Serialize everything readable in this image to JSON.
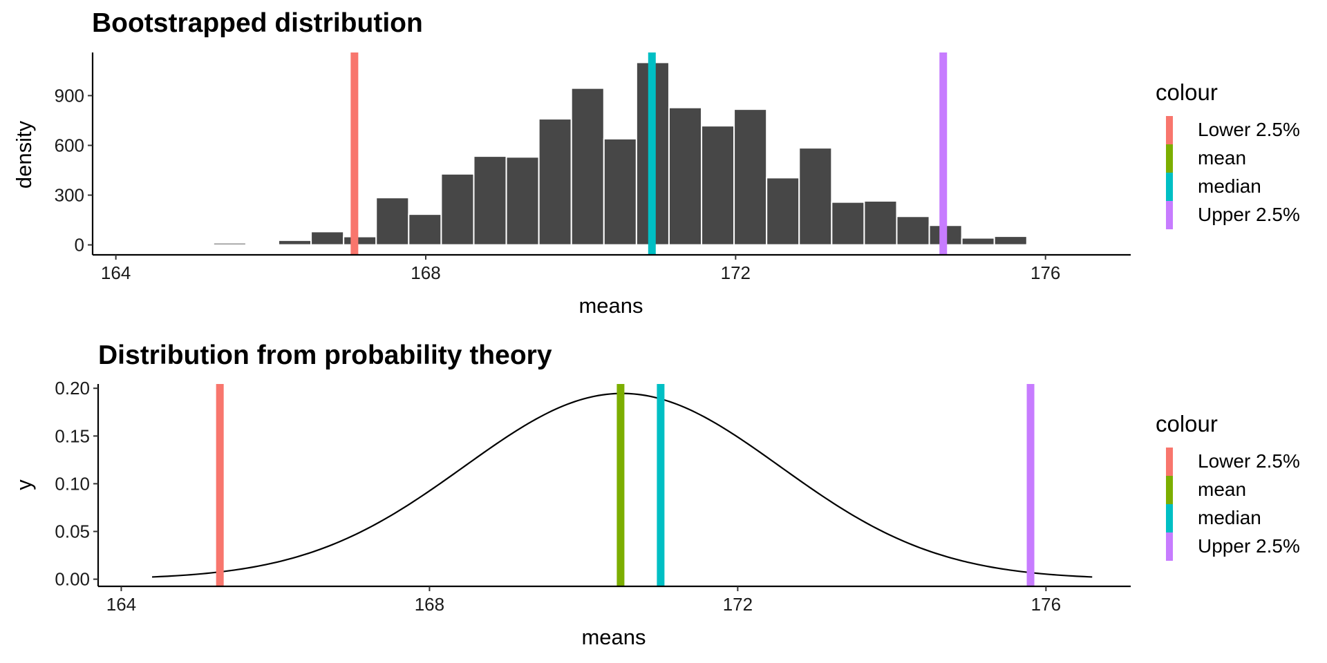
{
  "chart_data": [
    {
      "type": "bar",
      "title": "Bootstrapped distribution",
      "xlabel": "means",
      "ylabel": "density",
      "xlim": [
        163.7,
        177.1
      ],
      "ylim": [
        -60,
        1160
      ],
      "x_ticks": [
        164,
        168,
        172,
        176
      ],
      "y_ticks": [
        0,
        300,
        600,
        900
      ],
      "grid": false,
      "legend_position": "right",
      "legend_title": "colour",
      "bins": [
        {
          "x0": 164.42,
          "x1": 164.84,
          "value": 3
        },
        {
          "x0": 164.84,
          "x1": 165.26,
          "value": 3
        },
        {
          "x0": 165.26,
          "x1": 165.68,
          "value": 12
        },
        {
          "x0": 165.68,
          "x1": 166.1,
          "value": 5
        },
        {
          "x0": 166.1,
          "x1": 166.52,
          "value": 28
        },
        {
          "x0": 166.52,
          "x1": 166.94,
          "value": 80
        },
        {
          "x0": 166.94,
          "x1": 167.36,
          "value": 50
        },
        {
          "x0": 167.36,
          "x1": 167.78,
          "value": 285
        },
        {
          "x0": 167.78,
          "x1": 168.2,
          "value": 185
        },
        {
          "x0": 168.2,
          "x1": 168.62,
          "value": 428
        },
        {
          "x0": 168.62,
          "x1": 169.04,
          "value": 535
        },
        {
          "x0": 169.04,
          "x1": 169.46,
          "value": 530
        },
        {
          "x0": 169.46,
          "x1": 169.88,
          "value": 760
        },
        {
          "x0": 169.88,
          "x1": 170.3,
          "value": 945
        },
        {
          "x0": 170.3,
          "x1": 170.72,
          "value": 640
        },
        {
          "x0": 170.72,
          "x1": 171.14,
          "value": 1100
        },
        {
          "x0": 171.14,
          "x1": 171.56,
          "value": 828
        },
        {
          "x0": 171.56,
          "x1": 171.98,
          "value": 718
        },
        {
          "x0": 171.98,
          "x1": 172.4,
          "value": 818
        },
        {
          "x0": 172.4,
          "x1": 172.82,
          "value": 405
        },
        {
          "x0": 172.82,
          "x1": 173.24,
          "value": 585
        },
        {
          "x0": 173.24,
          "x1": 173.66,
          "value": 258
        },
        {
          "x0": 173.66,
          "x1": 174.08,
          "value": 265
        },
        {
          "x0": 174.08,
          "x1": 174.5,
          "value": 172
        },
        {
          "x0": 174.5,
          "x1": 174.92,
          "value": 118
        },
        {
          "x0": 174.92,
          "x1": 175.34,
          "value": 42
        },
        {
          "x0": 175.34,
          "x1": 175.76,
          "value": 52
        },
        {
          "x0": 175.76,
          "x1": 176.18,
          "value": 3
        },
        {
          "x0": 176.18,
          "x1": 176.6,
          "value": 3
        }
      ],
      "bar_color": "#474747",
      "vlines": [
        {
          "name": "Lower 2.5%",
          "x": 167.08,
          "color": "#F8766D"
        },
        {
          "name": "median",
          "x": 170.92,
          "color": "#00BFC4"
        },
        {
          "name": "Upper 2.5%",
          "x": 174.68,
          "color": "#C77CFF"
        }
      ]
    },
    {
      "type": "line",
      "title": "Distribution from probability theory",
      "xlabel": "means",
      "ylabel": "y",
      "xlim": [
        163.7,
        177.1
      ],
      "ylim": [
        -0.0075,
        0.2045
      ],
      "x_ticks": [
        164,
        168,
        172,
        176
      ],
      "y_ticks": [
        "0.00",
        "0.05",
        "0.10",
        "0.15",
        "0.20"
      ],
      "grid": false,
      "legend_position": "right",
      "legend_title": "colour",
      "curve": {
        "type": "normal",
        "mean": 170.5,
        "sd": 2.05,
        "x_range": [
          164.4,
          176.6
        ],
        "color": "#000000"
      },
      "vlines": [
        {
          "name": "Lower 2.5%",
          "x": 165.28,
          "color": "#F8766D"
        },
        {
          "name": "mean",
          "x": 170.48,
          "color": "#7CAE00"
        },
        {
          "name": "median",
          "x": 171.0,
          "color": "#00BFC4"
        },
        {
          "name": "Upper 2.5%",
          "x": 175.8,
          "color": "#C77CFF"
        }
      ]
    }
  ],
  "legends": [
    {
      "title": "colour",
      "items": [
        {
          "label": "Lower 2.5%",
          "color": "#F8766D"
        },
        {
          "label": "mean",
          "color": "#7CAE00"
        },
        {
          "label": "median",
          "color": "#00BFC4"
        },
        {
          "label": "Upper 2.5%",
          "color": "#C77CFF"
        }
      ]
    },
    {
      "title": "colour",
      "items": [
        {
          "label": "Lower 2.5%",
          "color": "#F8766D"
        },
        {
          "label": "mean",
          "color": "#7CAE00"
        },
        {
          "label": "median",
          "color": "#00BFC4"
        },
        {
          "label": "Upper 2.5%",
          "color": "#C77CFF"
        }
      ]
    }
  ]
}
